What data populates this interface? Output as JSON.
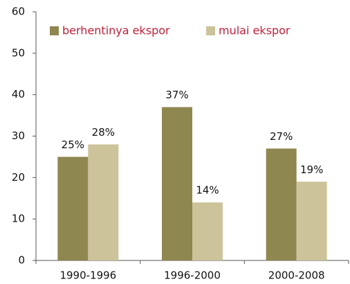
{
  "chart_data": {
    "type": "bar",
    "categories": [
      "1990-1996",
      "1996-2000",
      "2000-2008"
    ],
    "series": [
      {
        "name": "berhentinya ekspor",
        "color": "#8f8750",
        "values": [
          25,
          37,
          27
        ],
        "value_labels": [
          "25%",
          "37%",
          "27%"
        ]
      },
      {
        "name": "mulai ekspor",
        "color": "#cdc39a",
        "values": [
          28,
          14,
          19
        ],
        "value_labels": [
          "28%",
          "14%",
          "19%"
        ]
      }
    ],
    "ylim": [
      0,
      60
    ],
    "yticks": [
      0,
      10,
      20,
      30,
      40,
      50,
      60
    ],
    "legend": "top"
  }
}
